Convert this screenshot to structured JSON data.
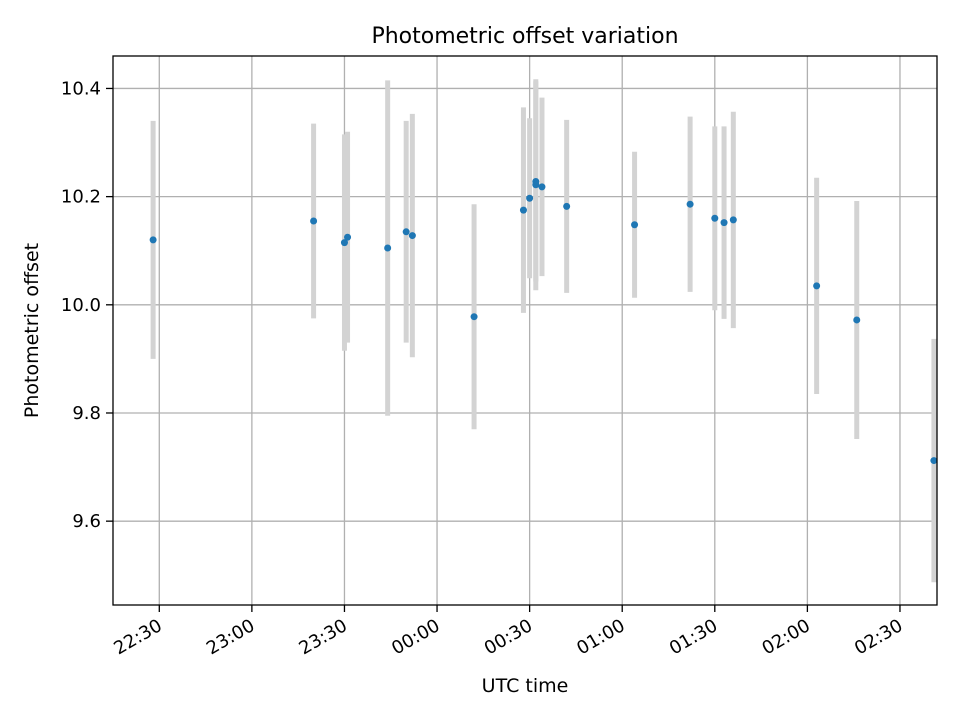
{
  "chart_data": {
    "type": "scatter",
    "title": "Photometric offset variation",
    "xlabel": "UTC time",
    "ylabel": "Photometric offset",
    "x_unit": "UTC time (HH:MM)",
    "xlim": [
      "22:15",
      "02:42"
    ],
    "ylim": [
      9.445,
      10.46
    ],
    "xticks": [
      "22:30",
      "23:00",
      "23:30",
      "00:00",
      "00:30",
      "01:00",
      "01:30",
      "02:00",
      "02:30"
    ],
    "yticks": [
      9.6,
      9.8,
      10.0,
      10.2,
      10.4
    ],
    "ytick_labels": [
      "9.6",
      "9.8",
      "10.0",
      "10.2",
      "10.4"
    ],
    "grid": true,
    "marker_color": "#1f77b4",
    "errorbar_color": "#d3d3d3",
    "points": [
      {
        "t": "22:28",
        "y": 10.12,
        "err": 0.22
      },
      {
        "t": "23:20",
        "y": 10.155,
        "err": 0.18
      },
      {
        "t": "23:30",
        "y": 10.115,
        "err": 0.2
      },
      {
        "t": "23:31",
        "y": 10.125,
        "err": 0.195
      },
      {
        "t": "23:44",
        "y": 10.105,
        "err": 0.31
      },
      {
        "t": "23:50",
        "y": 10.135,
        "err": 0.205
      },
      {
        "t": "23:52",
        "y": 10.128,
        "err": 0.225
      },
      {
        "t": "00:12",
        "y": 9.978,
        "err": 0.208
      },
      {
        "t": "00:28",
        "y": 10.175,
        "err": 0.19
      },
      {
        "t": "00:30",
        "y": 10.197,
        "err": 0.148
      },
      {
        "t": "00:32",
        "y": 10.222,
        "err": 0.195
      },
      {
        "t": "00:32",
        "y": 10.228,
        "err": 0.185
      },
      {
        "t": "00:34",
        "y": 10.218,
        "err": 0.165
      },
      {
        "t": "00:42",
        "y": 10.182,
        "err": 0.16
      },
      {
        "t": "01:04",
        "y": 10.148,
        "err": 0.135
      },
      {
        "t": "01:22",
        "y": 10.186,
        "err": 0.162
      },
      {
        "t": "01:30",
        "y": 10.16,
        "err": 0.17
      },
      {
        "t": "01:33",
        "y": 10.152,
        "err": 0.178
      },
      {
        "t": "01:36",
        "y": 10.157,
        "err": 0.2
      },
      {
        "t": "02:03",
        "y": 10.035,
        "err": 0.2
      },
      {
        "t": "02:16",
        "y": 9.972,
        "err": 0.22
      },
      {
        "t": "02:41",
        "y": 9.712,
        "err": 0.225
      }
    ]
  }
}
